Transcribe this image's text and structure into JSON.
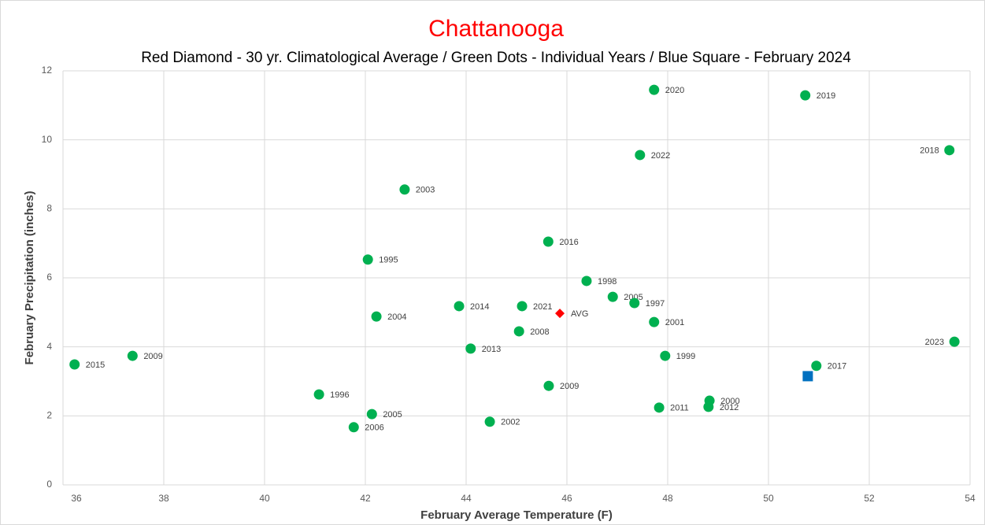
{
  "chart_data": {
    "type": "scatter",
    "title": "Chattanooga",
    "subtitle": "Red Diamond - 30 yr. Climatological Average / Green Dots - Individual Years / Blue Square - February 2024",
    "x_label": "February Average Temperature (F)",
    "y_label": "February Precipitation (inches)",
    "xlim": [
      36,
      54
    ],
    "xticks": [
      36,
      38,
      40,
      42,
      44,
      46,
      48,
      50,
      52,
      54
    ],
    "ylim": [
      0,
      12
    ],
    "yticks": [
      0,
      2,
      4,
      6,
      8,
      10,
      12
    ],
    "grid": true,
    "series": [
      {
        "color": "#00b050",
        "marker": "circle",
        "x": [
          36.23,
          37.38,
          41.08,
          41.77,
          42.13,
          42.05,
          42.22,
          42.78,
          43.86,
          44.09,
          44.47,
          45.05,
          45.11,
          45.63,
          45.64,
          46.39,
          46.91,
          47.34,
          47.45,
          47.73,
          47.73,
          47.83,
          47.95,
          48.83,
          48.81,
          50.73,
          50.95,
          53.59,
          53.69
        ],
        "values": [
          3.49,
          3.74,
          2.62,
          1.67,
          2.05,
          6.53,
          4.88,
          8.56,
          5.18,
          3.95,
          1.83,
          4.45,
          5.18,
          7.05,
          2.87,
          5.91,
          5.45,
          5.27,
          9.56,
          11.45,
          4.72,
          2.24,
          3.74,
          2.44,
          2.26,
          11.29,
          3.45,
          9.7,
          4.15
        ],
        "labels": [
          "2015",
          "2009",
          "1996",
          "2006",
          "2005",
          "1995",
          "2004",
          "2003",
          "2014",
          "2013",
          "2002",
          "2008",
          "2021",
          "2016",
          "2009",
          "1998",
          "2005",
          "1997",
          "2022",
          "2020",
          "2001",
          "2011",
          "1999",
          "2000",
          "2012",
          "2019",
          "2017",
          "2018",
          "2023"
        ]
      },
      {
        "color": "#ff0000",
        "marker": "diamond",
        "x": [
          45.86
        ],
        "values": [
          4.97
        ],
        "labels": [
          "AVG"
        ]
      },
      {
        "color": "#0070c0",
        "marker": "square",
        "x": [
          50.78
        ],
        "values": [
          3.15
        ]
      }
    ]
  }
}
